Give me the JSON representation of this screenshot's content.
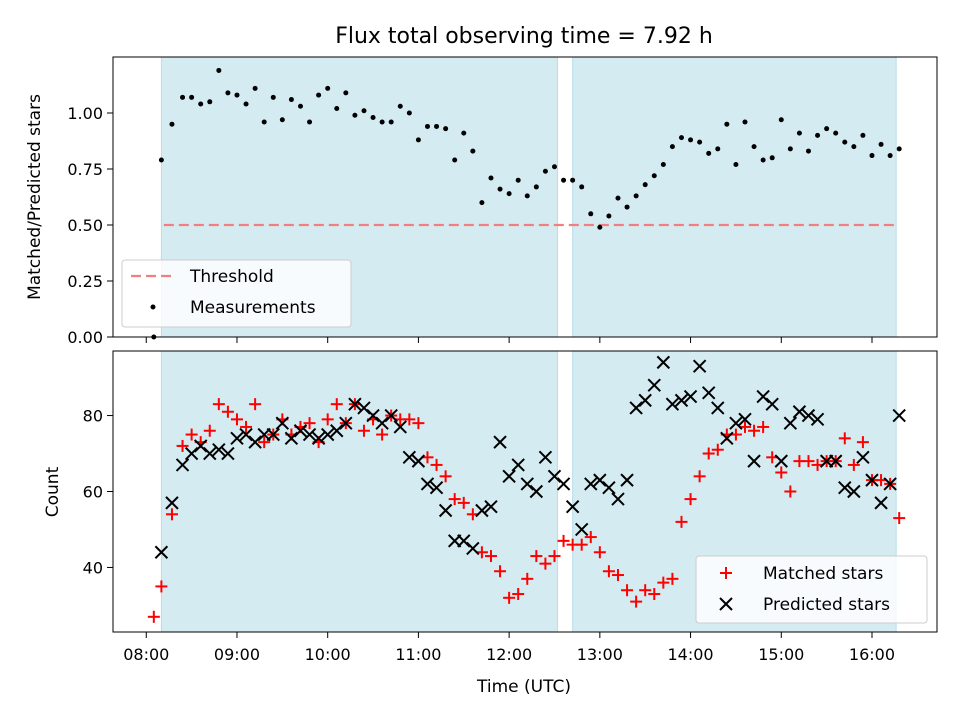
{
  "chart_data": [
    {
      "type": "scatter",
      "title": "Flux total observing time = 7.92 h",
      "xlabel": "",
      "ylabel": "Matched/Predicted stars",
      "ylim": [
        0,
        1.25
      ],
      "yticks": [
        "0.00",
        "0.25",
        "0.50",
        "0.75",
        "1.00"
      ],
      "threshold": {
        "name": "Threshold",
        "value": 0.5,
        "color": "#f08080"
      },
      "legend": {
        "position": "bottom-left"
      },
      "series": [
        {
          "name": "Measurements",
          "color": "#000000",
          "marker": "dot",
          "x": [
            "08:05",
            "08:10",
            "08:17",
            "08:24",
            "08:30",
            "08:36",
            "08:42",
            "08:48",
            "08:54",
            "09:00",
            "09:06",
            "09:12",
            "09:18",
            "09:24",
            "09:30",
            "09:36",
            "09:42",
            "09:48",
            "09:54",
            "10:00",
            "10:06",
            "10:12",
            "10:18",
            "10:24",
            "10:30",
            "10:36",
            "10:42",
            "10:48",
            "10:54",
            "11:00",
            "11:06",
            "11:12",
            "11:18",
            "11:24",
            "11:30",
            "11:36",
            "11:42",
            "11:48",
            "11:54",
            "12:00",
            "12:06",
            "12:12",
            "12:18",
            "12:24",
            "12:30",
            "12:36",
            "12:42",
            "12:48",
            "12:54",
            "13:00",
            "13:06",
            "13:12",
            "13:18",
            "13:24",
            "13:30",
            "13:36",
            "13:42",
            "13:48",
            "13:54",
            "14:00",
            "14:06",
            "14:12",
            "14:18",
            "14:24",
            "14:30",
            "14:36",
            "14:42",
            "14:48",
            "14:54",
            "15:00",
            "15:06",
            "15:12",
            "15:18",
            "15:24",
            "15:30",
            "15:36",
            "15:42",
            "15:48",
            "15:54",
            "16:00",
            "16:06",
            "16:12",
            "16:18"
          ],
          "y": [
            0.0,
            0.79,
            0.95,
            1.07,
            1.07,
            1.04,
            1.05,
            1.19,
            1.09,
            1.08,
            1.04,
            1.11,
            0.96,
            1.07,
            0.97,
            1.06,
            1.03,
            0.96,
            1.08,
            1.11,
            1.02,
            1.09,
            0.99,
            1.01,
            0.98,
            0.96,
            0.96,
            1.03,
            1.0,
            0.88,
            0.94,
            0.94,
            0.93,
            0.79,
            0.91,
            0.83,
            0.6,
            0.71,
            0.66,
            0.64,
            0.7,
            0.63,
            0.67,
            0.74,
            0.76,
            0.7,
            0.7,
            0.67,
            0.55,
            0.49,
            0.54,
            0.62,
            0.58,
            0.63,
            0.68,
            0.72,
            0.77,
            0.85,
            0.89,
            0.88,
            0.87,
            0.82,
            0.84,
            0.95,
            0.77,
            0.96,
            0.85,
            0.79,
            0.8,
            0.97,
            0.84,
            0.91,
            0.83,
            0.9,
            0.93,
            0.91,
            0.87,
            0.85,
            0.9,
            0.81,
            0.86,
            0.81,
            0.84
          ]
        }
      ]
    },
    {
      "type": "scatter",
      "title": "",
      "xlabel": "Time (UTC)",
      "ylabel": "Count",
      "ylim": [
        23,
        97
      ],
      "yticks": [
        "40",
        "60",
        "80"
      ],
      "xticks": [
        "08:00",
        "09:00",
        "10:00",
        "11:00",
        "12:00",
        "13:00",
        "14:00",
        "15:00",
        "16:00"
      ],
      "legend": {
        "position": "bottom-right"
      },
      "shaded_intervals": [
        [
          "08:10",
          "12:32"
        ],
        [
          "12:42",
          "16:16"
        ]
      ],
      "series": [
        {
          "name": "Matched stars",
          "color": "#ff0000",
          "marker": "plus",
          "x": [
            "08:05",
            "08:10",
            "08:17",
            "08:24",
            "08:30",
            "08:36",
            "08:42",
            "08:48",
            "08:54",
            "09:00",
            "09:06",
            "09:12",
            "09:18",
            "09:24",
            "09:30",
            "09:36",
            "09:42",
            "09:48",
            "09:54",
            "10:00",
            "10:06",
            "10:12",
            "10:18",
            "10:24",
            "10:30",
            "10:36",
            "10:42",
            "10:48",
            "10:54",
            "11:00",
            "11:06",
            "11:12",
            "11:18",
            "11:24",
            "11:30",
            "11:36",
            "11:42",
            "11:48",
            "11:54",
            "12:00",
            "12:06",
            "12:12",
            "12:18",
            "12:24",
            "12:30",
            "12:36",
            "12:42",
            "12:48",
            "12:54",
            "13:00",
            "13:06",
            "13:12",
            "13:18",
            "13:24",
            "13:30",
            "13:36",
            "13:42",
            "13:48",
            "13:54",
            "14:00",
            "14:06",
            "14:12",
            "14:18",
            "14:24",
            "14:30",
            "14:36",
            "14:42",
            "14:48",
            "14:54",
            "15:00",
            "15:06",
            "15:12",
            "15:18",
            "15:24",
            "15:30",
            "15:36",
            "15:42",
            "15:48",
            "15:54",
            "16:00",
            "16:06",
            "16:12",
            "16:18"
          ],
          "y": [
            27,
            35,
            54,
            72,
            75,
            73,
            76,
            83,
            81,
            79,
            77,
            83,
            73,
            75,
            79,
            75,
            77,
            78,
            73,
            79,
            83,
            78,
            83,
            76,
            79,
            75,
            80,
            79,
            79,
            78,
            69,
            67,
            64,
            58,
            57,
            54,
            44,
            43,
            39,
            32,
            33,
            37,
            43,
            41,
            43,
            47,
            46,
            46,
            48,
            44,
            39,
            38,
            34,
            31,
            34,
            33,
            36,
            37,
            52,
            58,
            64,
            70,
            71,
            75,
            75,
            77,
            76,
            77,
            69,
            65,
            60,
            68,
            68,
            67,
            68,
            68,
            74,
            67,
            73,
            63,
            63,
            62,
            53
          ]
        },
        {
          "name": "Predicted stars",
          "color": "#000000",
          "marker": "x",
          "x": [
            "08:10",
            "08:17",
            "08:24",
            "08:30",
            "08:36",
            "08:42",
            "08:48",
            "08:54",
            "09:00",
            "09:06",
            "09:12",
            "09:18",
            "09:24",
            "09:30",
            "09:36",
            "09:42",
            "09:48",
            "09:54",
            "10:00",
            "10:06",
            "10:12",
            "10:18",
            "10:24",
            "10:30",
            "10:36",
            "10:42",
            "10:48",
            "10:54",
            "11:00",
            "11:06",
            "11:12",
            "11:18",
            "11:24",
            "11:30",
            "11:36",
            "11:42",
            "11:48",
            "11:54",
            "12:00",
            "12:06",
            "12:12",
            "12:18",
            "12:24",
            "12:30",
            "12:36",
            "12:42",
            "12:48",
            "12:54",
            "13:00",
            "13:06",
            "13:12",
            "13:18",
            "13:24",
            "13:30",
            "13:36",
            "13:42",
            "13:48",
            "13:54",
            "14:00",
            "14:06",
            "14:12",
            "14:18",
            "14:24",
            "14:30",
            "14:36",
            "14:42",
            "14:48",
            "14:54",
            "15:00",
            "15:06",
            "15:12",
            "15:18",
            "15:24",
            "15:30",
            "15:36",
            "15:42",
            "15:48",
            "15:54",
            "16:00",
            "16:06",
            "16:12",
            "16:18"
          ],
          "y": [
            44,
            57,
            67,
            70,
            72,
            70,
            71,
            70,
            74,
            75,
            73,
            75,
            75,
            78,
            74,
            76,
            75,
            74,
            75,
            76,
            78,
            83,
            82,
            80,
            78,
            80,
            77,
            69,
            68,
            62,
            61,
            55,
            47,
            47,
            45,
            55,
            56,
            73,
            64,
            67,
            62,
            60,
            69,
            64,
            62,
            56,
            50,
            62,
            63,
            61,
            58,
            63,
            82,
            84,
            88,
            94,
            83,
            84,
            85,
            93,
            86,
            82,
            74,
            78,
            79,
            68,
            85,
            83,
            68,
            78,
            81,
            80,
            79,
            68,
            68,
            61,
            60,
            69,
            63,
            57,
            62,
            80
          ]
        }
      ]
    }
  ]
}
